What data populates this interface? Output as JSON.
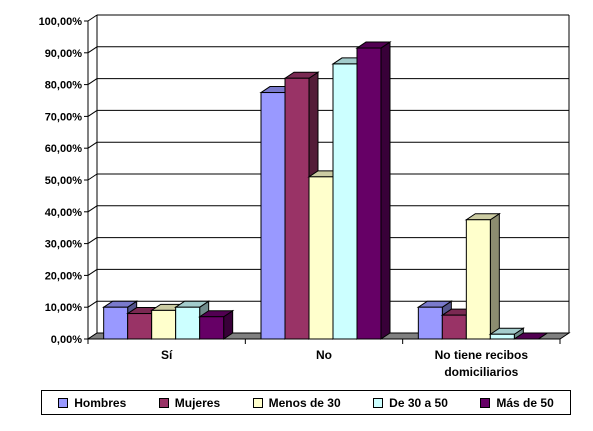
{
  "chart_data": {
    "type": "bar",
    "title": "",
    "xlabel": "",
    "ylabel": "",
    "ylim": [
      0,
      100
    ],
    "y_ticks": [
      "0,00%",
      "10,00%",
      "20,00%",
      "30,00%",
      "40,00%",
      "50,00%",
      "60,00%",
      "70,00%",
      "80,00%",
      "90,00%",
      "100,00%"
    ],
    "categories": [
      [
        "Sí"
      ],
      [
        "No"
      ],
      [
        "No tiene recibos",
        "domiciliarios"
      ]
    ],
    "grid": true,
    "legend": "bottom",
    "series": [
      {
        "name": "Hombres",
        "color": "#9999ff",
        "values": [
          10,
          77.5,
          10
        ]
      },
      {
        "name": "Mujeres",
        "color": "#993366",
        "values": [
          8,
          82,
          7.5
        ]
      },
      {
        "name": "Menos de 30",
        "color": "#ffffcc",
        "values": [
          9,
          51,
          37.5
        ]
      },
      {
        "name": "De 30 a 50",
        "color": "#ccffff",
        "values": [
          10,
          86.5,
          1.5
        ]
      },
      {
        "name": "Más de 50",
        "color": "#660066",
        "values": [
          7,
          91.5,
          0
        ]
      }
    ]
  }
}
